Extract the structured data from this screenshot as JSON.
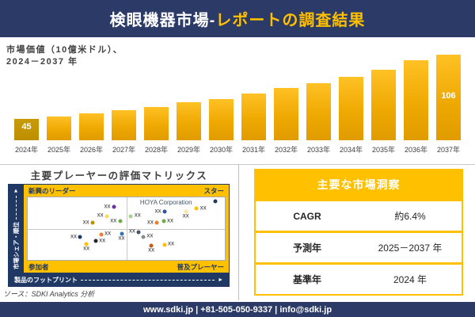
{
  "header": {
    "title_main": "検眼機器市場-",
    "title_accent": "レポートの調査結果"
  },
  "chart": {
    "label_line1": "市場価値（10億米ドル）、",
    "label_line2": "2024－2037 年"
  },
  "chart_data": [
    {
      "type": "bar",
      "title": "市場価値（10億米ドル）、2024－2037年",
      "unit": "10億米ドル",
      "categories": [
        "2024年",
        "2025年",
        "2026年",
        "2027年",
        "2028年",
        "2029年",
        "2030年",
        "2031年",
        "2032年",
        "2033年",
        "2034年",
        "2035年",
        "2036年",
        "2037年"
      ],
      "values": [
        45,
        47,
        50,
        53,
        56,
        61,
        64,
        69,
        74,
        79,
        85,
        92,
        101,
        106
      ],
      "labeled_bars": [
        {
          "index": 0,
          "label": "45"
        },
        {
          "index": 13,
          "label": "106"
        }
      ],
      "bar_color": "#EFA902",
      "first_bar_color": "#BD8F00",
      "xlabel": "",
      "ylabel": "",
      "grid": false,
      "legend": false
    },
    {
      "type": "scatter",
      "title": "主要プレーヤーの評価マトリックス",
      "y_axis": "市場シェア・順位",
      "x_axis": "製品のフットプリント",
      "quadrants": {
        "top_left": "新興のリーダー",
        "top_right": "スター",
        "bottom_left": "参加者",
        "bottom_right": "普及プレーヤー"
      },
      "annotation": "HOYA Corporation",
      "marker_label": "XX",
      "points": [
        {
          "x": 43.7,
          "y": 15.7,
          "color": "#7030A0",
          "label_pos": "left"
        },
        {
          "x": 40.1,
          "y": 30.1,
          "color": "#FFD966",
          "label_pos": "left"
        },
        {
          "x": 32.9,
          "y": 41.0,
          "color": "#BF8F00",
          "label_pos": "left"
        },
        {
          "x": 46.8,
          "y": 38.6,
          "color": "#70AD47",
          "label_pos": "left"
        },
        {
          "x": 52.4,
          "y": 30.1,
          "color": "#A9D18E",
          "label_pos": "right"
        },
        {
          "x": 26.6,
          "y": 63.9,
          "color": "#1F3864",
          "label_pos": "left"
        },
        {
          "x": 29.8,
          "y": 74.7,
          "color": "#FFC000",
          "label_pos": "below"
        },
        {
          "x": 34.5,
          "y": 69.9,
          "color": "#252525",
          "label_pos": "right"
        },
        {
          "x": 37.3,
          "y": 59.0,
          "color": "#ED7D31",
          "label_pos": "right"
        },
        {
          "x": 47.6,
          "y": 57.8,
          "color": "#2E75B6",
          "label_pos": "below"
        },
        {
          "x": 56.3,
          "y": 55.4,
          "color": "#44546A",
          "label_pos": "left"
        },
        {
          "x": 58.7,
          "y": 62.7,
          "color": "#8C8C8C",
          "label_pos": "right"
        },
        {
          "x": 95.2,
          "y": 6.0,
          "color": "#203864",
          "label_pos": "none"
        },
        {
          "x": 85.7,
          "y": 18.1,
          "color": "#FFC000",
          "label_pos": "right"
        },
        {
          "x": 80.2,
          "y": 22.9,
          "color": "#FFE699",
          "label_pos": "below"
        },
        {
          "x": 69.4,
          "y": 22.9,
          "color": "#2F5597",
          "label_pos": "left"
        },
        {
          "x": 65.5,
          "y": 41.0,
          "color": "#ED7D31",
          "label_pos": "left"
        },
        {
          "x": 69.0,
          "y": 38.6,
          "color": "#70AD47",
          "label_pos": "right"
        },
        {
          "x": 62.7,
          "y": 77.1,
          "color": "#C55A11",
          "label_pos": "below"
        },
        {
          "x": 69.4,
          "y": 75.9,
          "color": "#FFC000",
          "label_pos": "right"
        }
      ]
    }
  ],
  "insights": {
    "title": "主要な市場洞察",
    "rows": [
      {
        "label": "CAGR",
        "value": "約6.4%"
      },
      {
        "label": "予測年",
        "value": "2025－2037 年"
      },
      {
        "label": "基準年",
        "value": "2024 年"
      }
    ]
  },
  "source": {
    "text": "ソース：SDKI Analytics 分析"
  },
  "footer": {
    "text": "www.sdki.jp | +81-505-050-9337 | info@sdki.jp"
  },
  "icons": {
    "up_arrow": "►",
    "right_arrow": "►"
  },
  "colors": {
    "navy": "#2B3A67",
    "matrix_navy": "#1F3864",
    "gold": "#FFC000",
    "text_dark": "#3F3F3F"
  }
}
